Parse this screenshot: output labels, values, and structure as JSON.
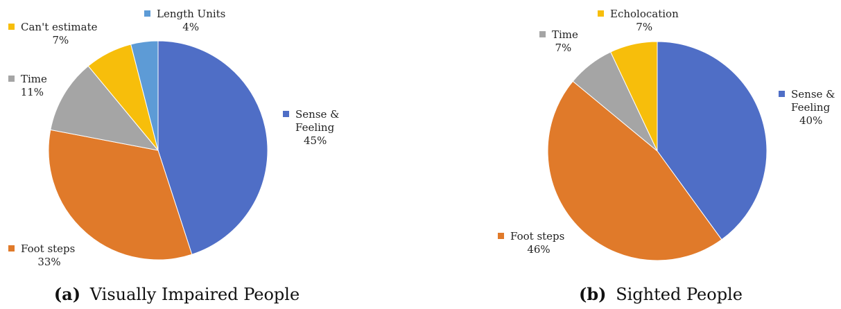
{
  "chart_data": [
    {
      "type": "pie",
      "caption_tag": "(a)",
      "caption_text": "Visually Impaired People",
      "slices": [
        {
          "label_lines": [
            "Sense &",
            "Feeling"
          ],
          "percent_label": "45%",
          "value": 45,
          "color": "#4F6EC6"
        },
        {
          "label_lines": [
            "Foot steps"
          ],
          "percent_label": "33%",
          "value": 33,
          "color": "#E07A2A"
        },
        {
          "label_lines": [
            "Time"
          ],
          "percent_label": "11%",
          "value": 11,
          "color": "#A5A5A5"
        },
        {
          "label_lines": [
            "Can't estimate"
          ],
          "percent_label": "7%",
          "value": 7,
          "color": "#F7BE0B"
        },
        {
          "label_lines": [
            "Length Units"
          ],
          "percent_label": "4%",
          "value": 4,
          "color": "#5D9BD6"
        }
      ]
    },
    {
      "type": "pie",
      "caption_tag": "(b)",
      "caption_text": "Sighted People",
      "slices": [
        {
          "label_lines": [
            "Sense &",
            "Feeling"
          ],
          "percent_label": "40%",
          "value": 40,
          "color": "#4F6EC6"
        },
        {
          "label_lines": [
            "Foot steps"
          ],
          "percent_label": "46%",
          "value": 46,
          "color": "#E07A2A"
        },
        {
          "label_lines": [
            "Time"
          ],
          "percent_label": "7%",
          "value": 7,
          "color": "#A5A5A5"
        },
        {
          "label_lines": [
            "Echolocation"
          ],
          "percent_label": "7%",
          "value": 7,
          "color": "#F7BE0B"
        }
      ]
    }
  ]
}
